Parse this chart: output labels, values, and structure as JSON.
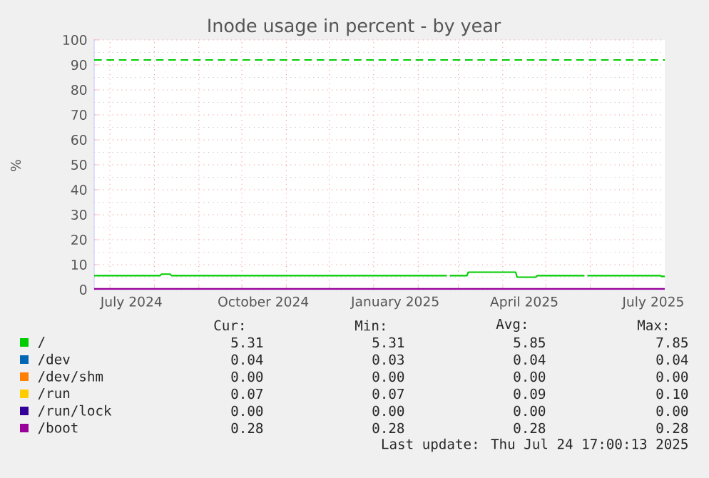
{
  "chart_data": {
    "type": "line",
    "title": "Inode usage in percent - by year",
    "ylabel": "%",
    "x": [
      "2024-06-20",
      "2024-08-05",
      "2024-08-06",
      "2024-08-12",
      "2024-08-13",
      "2025-02-21",
      "2025-02-22",
      "2025-02-23",
      "2025-03-07",
      "2025-03-08",
      "2025-04-10",
      "2025-04-11",
      "2025-04-24",
      "2025-04-25",
      "2025-05-28",
      "2025-05-29",
      "2025-05-30",
      "2025-07-20",
      "2025-07-21",
      "2025-07-23"
    ],
    "series": [
      {
        "name": "/",
        "color": "#00cc00",
        "values": [
          5.6,
          5.6,
          6.2,
          6.2,
          5.6,
          5.6,
          null,
          5.6,
          5.6,
          7.0,
          7.0,
          5.0,
          5.0,
          5.6,
          5.6,
          null,
          5.6,
          5.6,
          5.3,
          5.3
        ]
      },
      {
        "name": "/dev",
        "color": "#0066b3",
        "values": [
          null,
          null,
          null,
          null,
          null,
          null,
          null,
          null,
          null,
          null,
          null,
          null,
          null,
          null,
          null,
          null,
          null,
          null,
          null,
          null
        ]
      },
      {
        "name": "/dev/shm",
        "color": "#ff8000",
        "values": [
          null,
          null,
          null,
          null,
          null,
          null,
          null,
          null,
          null,
          null,
          null,
          null,
          null,
          null,
          null,
          null,
          null,
          null,
          null,
          null
        ]
      },
      {
        "name": "/run",
        "color": "#ffcc00",
        "values": [
          null,
          null,
          null,
          null,
          null,
          null,
          null,
          null,
          null,
          null,
          null,
          null,
          null,
          null,
          null,
          null,
          null,
          null,
          null,
          null
        ]
      },
      {
        "name": "/run/lock",
        "color": "#330099",
        "values": [
          null,
          null,
          null,
          null,
          null,
          null,
          null,
          null,
          null,
          null,
          null,
          null,
          null,
          null,
          null,
          null,
          null,
          null,
          null,
          null
        ]
      },
      {
        "name": "/boot",
        "color": "#990099",
        "x": [
          "2024-06-20",
          "2025-07-23"
        ],
        "values": [
          0.3,
          0.3
        ]
      }
    ],
    "xlim": [
      "2024-06-20",
      "2025-07-23"
    ],
    "xticks": [
      {
        "value": "2024-07-01",
        "label": null
      },
      {
        "value": "2024-08-01",
        "label": null
      },
      {
        "value": "2024-09-01",
        "label": null
      },
      {
        "value": "2024-10-01",
        "label": null
      },
      {
        "value": "2024-11-01",
        "label": null
      },
      {
        "value": "2024-12-01",
        "label": null
      },
      {
        "value": "2025-01-01",
        "label": null
      },
      {
        "value": "2025-02-01",
        "label": null
      },
      {
        "value": "2025-03-01",
        "label": null
      },
      {
        "value": "2025-04-01",
        "label": null
      },
      {
        "value": "2025-05-01",
        "label": null
      },
      {
        "value": "2025-06-01",
        "label": null
      },
      {
        "value": "2025-07-01",
        "label": null
      },
      {
        "value": "2024-07-16",
        "label": "July 2024"
      },
      {
        "value": "2024-10-16",
        "label": "October 2024"
      },
      {
        "value": "2025-01-16",
        "label": "January 2025"
      },
      {
        "value": "2025-04-16",
        "label": "April 2025"
      },
      {
        "value": "2025-07-15",
        "label": "July 2025"
      }
    ],
    "ylim": [
      0,
      100
    ],
    "yticks": [
      0,
      10,
      20,
      30,
      40,
      50,
      60,
      70,
      80,
      90,
      100
    ],
    "grid": true,
    "marker": "none",
    "legend": "bottom",
    "ref_lines": [
      {
        "axis": "y",
        "value": 92,
        "color": "#00cc00",
        "line_style": "dashed"
      }
    ],
    "annotations": [
      "Cur:",
      "Min:",
      "Avg:",
      "Max:",
      "5.31",
      "5.31",
      "5.85",
      "7.85",
      "0.04",
      "0.03",
      "0.04",
      "0.04",
      "0.00",
      "0.00",
      "0.00",
      "0.00",
      "0.07",
      "0.07",
      "0.09",
      "0.10",
      "0.00",
      "0.00",
      "0.00",
      "0.00",
      "0.28",
      "0.28",
      "0.28",
      "0.28",
      "Last update: Thu Jul 24 17:00:13 2025"
    ]
  }
}
